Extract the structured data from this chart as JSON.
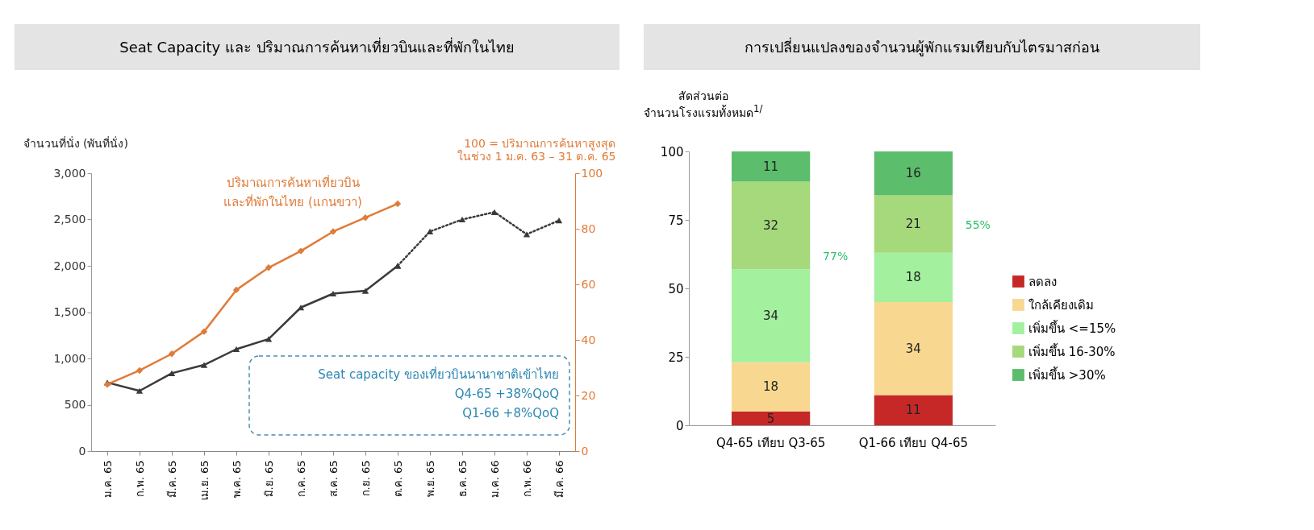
{
  "chart_data": [
    {
      "type": "line",
      "title": "Seat Capacity และ ปริมาณการค้นหาเที่ยวบินและที่พักในไทย",
      "ylabel": "จำนวนที่นั่ง (พันที่นั่ง)",
      "y2label": "100 = ปริมาณการค้นหาสูงสุด\nในช่วง 1 ม.ค. 63 – 31 ต.ค. 65",
      "categories": [
        "ม.ค. 65",
        "ก.พ. 65",
        "มี.ค. 65",
        "เม.ย. 65",
        "พ.ค. 65",
        "มิ.ย. 65",
        "ก.ค. 65",
        "ส.ค. 65",
        "ก.ย. 65",
        "ต.ค. 65",
        "พ.ย. 65",
        "ธ.ค. 65",
        "ม.ค. 66",
        "ก.พ. 66",
        "มี.ค. 66"
      ],
      "series": [
        {
          "color": "#3a3a3a",
          "marker": "triangle",
          "line_style": "solid",
          "values": [
            740,
            650,
            840,
            930,
            1100,
            1210,
            1550,
            1700,
            1730,
            2000,
            null,
            null,
            null,
            null,
            null
          ]
        },
        {
          "color": "#3a3a3a",
          "marker": "triangle",
          "line_style": "dotted",
          "values": [
            null,
            null,
            null,
            null,
            null,
            null,
            null,
            null,
            null,
            2000,
            2370,
            2500,
            2580,
            2340,
            2490
          ]
        },
        {
          "name": "ปริมาณการค้นหาเที่ยวบิน\nและที่พักในไทย (แกนขวา)",
          "color": "#e07b39",
          "marker": "diamond",
          "line_style": "solid",
          "axis": "y2",
          "values": [
            24,
            29,
            35,
            43,
            58,
            66,
            72,
            79,
            84,
            89,
            null,
            null,
            null,
            null,
            null
          ]
        }
      ],
      "ylim": [
        0,
        3000
      ],
      "yticks": [
        0,
        500,
        {
          "value": 1000,
          "label": "1,000"
        },
        {
          "value": 1500,
          "label": "1,500"
        },
        {
          "value": 2000,
          "label": "2,000"
        },
        {
          "value": 2500,
          "label": "2,500"
        },
        {
          "value": 3000,
          "label": "3,000"
        }
      ],
      "y2lim": [
        0,
        100
      ],
      "y2ticks": [
        0,
        20,
        40,
        60,
        80,
        100
      ],
      "grid": false,
      "annotations": [
        "Seat capacity ของเที่ยวบินนานาชาติเข้าไทย",
        "Q4-65 +38%QoQ",
        "Q1-66 +8%QoQ"
      ]
    },
    {
      "type": "bar",
      "stacked": true,
      "title": "การเปลี่ยนแปลงของจำนวนผู้พักแรมเทียบกับไตรมาสก่อน",
      "ylabel": "สัดส่วนต่อ\nจำนวนโรงแรมทั้งหมด$^{1/}$",
      "categories": [
        "Q4-65 เทียบ Q3-65",
        "Q1-66 เทียบ Q4-65"
      ],
      "series": [
        {
          "name": "ลดลง",
          "color": "#c62828",
          "values": [
            5,
            11
          ]
        },
        {
          "name": "ใกล้เคียงเดิม",
          "color": "#f8d890",
          "values": [
            18,
            34
          ]
        },
        {
          "name": "เพิ่มขึ้น <=15%",
          "color": "#a3f09e",
          "values": [
            34,
            18
          ]
        },
        {
          "name": "เพิ่มขึ้น 16-30%",
          "color": "#a5d97c",
          "values": [
            32,
            21
          ]
        },
        {
          "name": "เพิ่มขึ้น >30%",
          "color": "#5cbd6c",
          "values": [
            11,
            16
          ]
        }
      ],
      "ylim": [
        0,
        100
      ],
      "yticks": [
        0,
        25,
        50,
        75,
        100
      ],
      "data_labels": true,
      "legend": "right",
      "annotations": [
        "77%",
        "55%"
      ]
    }
  ]
}
